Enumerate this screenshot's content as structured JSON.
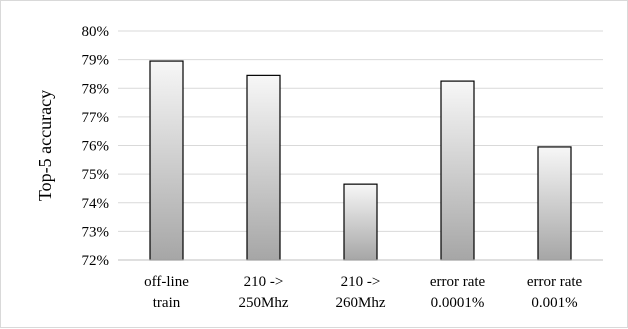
{
  "chart_data": {
    "type": "bar",
    "categories": [
      [
        "off-line",
        "train"
      ],
      [
        "210 ->",
        "250Mhz"
      ],
      [
        "210 ->",
        "260Mhz"
      ],
      [
        "error rate",
        "0.0001%"
      ],
      [
        "error rate",
        "0.001%"
      ]
    ],
    "values": [
      78.95,
      78.45,
      74.65,
      78.25,
      75.95
    ],
    "title": "",
    "xlabel": "",
    "ylabel": "Top-5 accuracy",
    "ylim": [
      72,
      80
    ],
    "yticks": [
      72,
      73,
      74,
      75,
      76,
      77,
      78,
      79,
      80
    ],
    "ytick_labels": [
      "72%",
      "73%",
      "74%",
      "75%",
      "76%",
      "77%",
      "78%",
      "79%",
      "80%"
    ],
    "grid": true,
    "legend": "none",
    "colors": {
      "bar_fill_top": "#f7f7f7",
      "bar_fill_bottom": "#a6a6a6",
      "bar_stroke": "#000000",
      "grid": "#d9d9d9",
      "axis": "#bfbfbf"
    }
  }
}
